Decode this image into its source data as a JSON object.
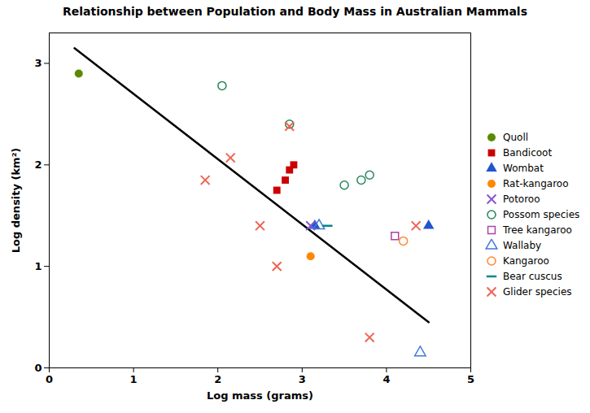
{
  "chart_data": {
    "type": "scatter",
    "title": "Relationship between Population and Body Mass in Australian Mammals",
    "xlabel": "Log mass (grams)",
    "ylabel": "Log density (km²)",
    "xlim": [
      0.0,
      5.0
    ],
    "ylim": [
      0.0,
      3.3
    ],
    "xticks": [
      0,
      1,
      2,
      3,
      4,
      5
    ],
    "yticks": [
      0,
      1,
      2,
      3
    ],
    "grid": false,
    "legend": "right",
    "series": [
      {
        "type": "line",
        "color": "#000000",
        "x": [
          0.3,
          4.5
        ],
        "values": [
          3.15,
          0.45
        ]
      },
      {
        "name": "Quoll",
        "color": "#5a8a00",
        "marker": "circle",
        "x": [
          0.35
        ],
        "values": [
          2.9
        ]
      },
      {
        "name": "Bandicoot",
        "color": "#cc0000",
        "marker": "square",
        "x": [
          2.7,
          2.8,
          2.85,
          2.9
        ],
        "values": [
          1.75,
          1.85,
          1.95,
          2.0
        ]
      },
      {
        "name": "Wombat",
        "color": "#2255cc",
        "marker": "triangle",
        "x": [
          3.15,
          4.5
        ],
        "values": [
          1.4,
          1.4
        ]
      },
      {
        "name": "Rat-kangaroo",
        "color": "#ff8800",
        "marker": "circle",
        "x": [
          3.1
        ],
        "values": [
          1.1
        ]
      },
      {
        "name": "Potoroo",
        "color": "#8855cc",
        "marker": "x",
        "x": [
          3.1
        ],
        "values": [
          1.4
        ]
      },
      {
        "name": "Possom species",
        "color": "#228855",
        "marker": "circle-open",
        "x": [
          2.05,
          2.85,
          3.5,
          3.7,
          3.8
        ],
        "values": [
          2.78,
          2.4,
          1.8,
          1.85,
          1.9
        ]
      },
      {
        "name": "Tree kangaroo",
        "color": "#aa44aa",
        "marker": "square-open",
        "x": [
          4.1
        ],
        "values": [
          1.3
        ]
      },
      {
        "name": "Wallaby",
        "color": "#4477dd",
        "marker": "triangle-open",
        "x": [
          3.2,
          4.4
        ],
        "values": [
          1.4,
          0.15
        ]
      },
      {
        "name": "Kangaroo",
        "color": "#ff8833",
        "marker": "circle-open",
        "x": [
          4.2
        ],
        "values": [
          1.25
        ]
      },
      {
        "name": "Bear cuscus",
        "color": "#008888",
        "marker": "dash",
        "x": [
          3.3
        ],
        "values": [
          1.4
        ]
      },
      {
        "name": "Glider species",
        "color": "#ee6655",
        "marker": "x",
        "x": [
          1.85,
          2.15,
          2.5,
          2.7,
          2.85,
          3.8,
          4.35
        ],
        "values": [
          1.85,
          2.07,
          1.4,
          1.0,
          2.38,
          0.3,
          1.4
        ]
      }
    ]
  }
}
